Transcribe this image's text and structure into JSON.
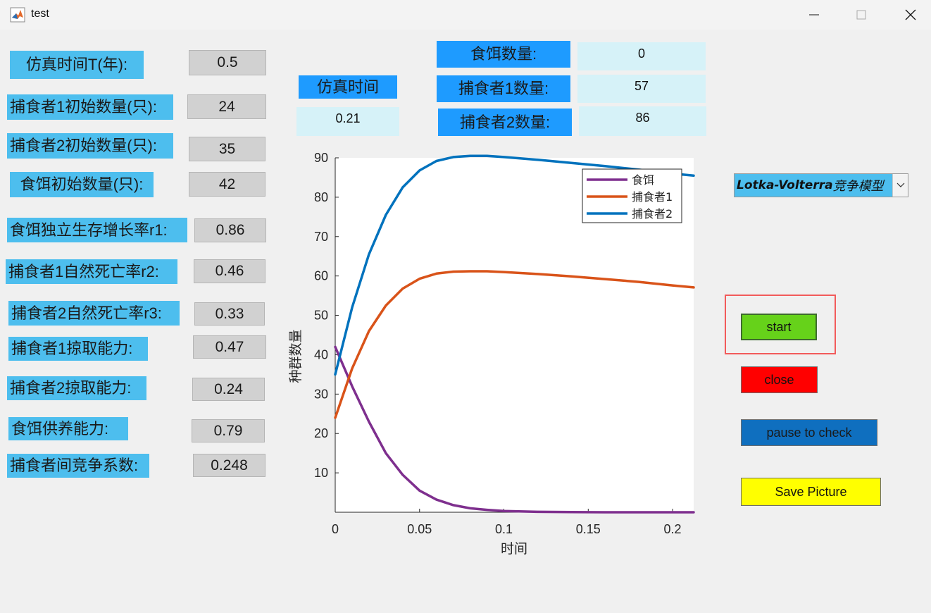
{
  "window": {
    "title": "test"
  },
  "params": [
    {
      "label": "仿真时间T(年):",
      "value": "0.5"
    },
    {
      "label": "捕食者1初始数量(只):",
      "value": "24"
    },
    {
      "label": "捕食者2初始数量(只):",
      "value": "35"
    },
    {
      "label": "食饵初始数量(只):",
      "value": "42"
    },
    {
      "label": "食饵独立生存增长率r1:",
      "value": "0.86"
    },
    {
      "label": "捕食者1自然死亡率r2:",
      "value": "0.46"
    },
    {
      "label": "捕食者2自然死亡率r3:",
      "value": "0.33"
    },
    {
      "label": "捕食者1掠取能力:",
      "value": "0.47"
    },
    {
      "label": "捕食者2掠取能力:",
      "value": "0.24"
    },
    {
      "label": "食饵供养能力:",
      "value": "0.79"
    },
    {
      "label": "捕食者间竞争系数:",
      "value": "0.248"
    }
  ],
  "status": {
    "sim_time_label": "仿真时间",
    "sim_time_value": "0.21",
    "prey_label": "食饵数量:",
    "prey_value": "0",
    "pred1_label": "捕食者1数量:",
    "pred1_value": "57",
    "pred2_label": "捕食者2数量:",
    "pred2_value": "86"
  },
  "model_select": {
    "selected_bold": "Lotka-Volterra",
    "selected_rest": " 竞争模型"
  },
  "buttons": {
    "start": "start",
    "close": "close",
    "pause": "pause to check",
    "save": "Save Picture"
  },
  "colors": {
    "label_bg": "#4dbeee",
    "status_label_bg": "#1e9bff",
    "start": "#66d21a",
    "close": "#ff0000",
    "pause": "#0f6fbf",
    "save": "#ffff00",
    "highlight": "#f25b5b"
  },
  "chart_data": {
    "type": "line",
    "xlabel": "时间",
    "ylabel": "种群数量",
    "xlim": [
      0,
      0.2125
    ],
    "ylim": [
      0,
      90
    ],
    "xticks": [
      0,
      0.05,
      0.1,
      0.15,
      0.2
    ],
    "xtick_labels": [
      "0",
      "0.05",
      "0.1",
      "0.15",
      "0.2"
    ],
    "yticks": [
      10,
      20,
      30,
      40,
      50,
      60,
      70,
      80,
      90
    ],
    "legend_position": "top-right",
    "x": [
      0,
      0.01,
      0.02,
      0.03,
      0.04,
      0.05,
      0.06,
      0.07,
      0.08,
      0.09,
      0.1,
      0.12,
      0.14,
      0.16,
      0.18,
      0.2,
      0.2125
    ],
    "series": [
      {
        "name": "食饵",
        "color": "#7e2f8e",
        "values": [
          42,
          32,
          23,
          15,
          9.5,
          5.5,
          3.2,
          1.8,
          1.0,
          0.6,
          0.3,
          0.1,
          0.05,
          0,
          0,
          0,
          0
        ]
      },
      {
        "name": "捕食者1",
        "color": "#d95319",
        "values": [
          24,
          36.5,
          46,
          52.5,
          56.8,
          59.3,
          60.6,
          61.1,
          61.2,
          61.2,
          61.0,
          60.5,
          59.9,
          59.2,
          58.5,
          57.6,
          57.1
        ]
      },
      {
        "name": "捕食者2",
        "color": "#0072bd",
        "values": [
          35,
          52,
          65.5,
          75.5,
          82.5,
          86.8,
          89.2,
          90.2,
          90.5,
          90.5,
          90.2,
          89.5,
          88.7,
          87.9,
          87.0,
          86.0,
          85.5
        ]
      }
    ]
  }
}
